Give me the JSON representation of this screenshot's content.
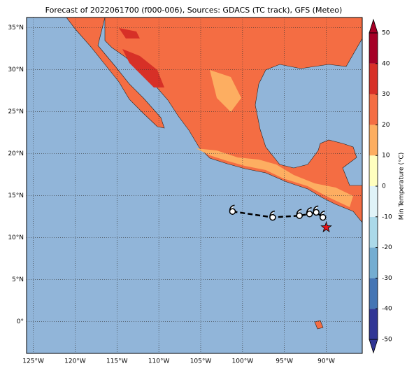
{
  "map": {
    "title": "Forecast of 2022061700 (f000-006), Sources: GDACS (TC track), GFS (Meteo)",
    "xlim": [
      -125.8,
      -85.7
    ],
    "ylim": [
      -3.8,
      36.2
    ],
    "xticks": [
      {
        "value": -125,
        "label": "125°W"
      },
      {
        "value": -120,
        "label": "120°W"
      },
      {
        "value": -115,
        "label": "115°W"
      },
      {
        "value": -110,
        "label": "110°W"
      },
      {
        "value": -105,
        "label": "105°W"
      },
      {
        "value": -100,
        "label": "100°W"
      },
      {
        "value": -95,
        "label": "95°W"
      },
      {
        "value": -90,
        "label": "90°W"
      }
    ],
    "yticks": [
      {
        "value": 0,
        "label": "0°"
      },
      {
        "value": 5,
        "label": "5°N"
      },
      {
        "value": 10,
        "label": "10°N"
      },
      {
        "value": 15,
        "label": "15°N"
      },
      {
        "value": 20,
        "label": "20°N"
      },
      {
        "value": 25,
        "label": "25°N"
      },
      {
        "value": 30,
        "label": "30°N"
      },
      {
        "value": 35,
        "label": "35°N"
      }
    ],
    "colorbar": {
      "label": "Min Temperature (°C)",
      "ticks": [
        -50,
        -40,
        -30,
        -20,
        -10,
        0,
        10,
        20,
        30,
        40,
        50
      ],
      "colors": [
        "#313695",
        "#4575b4",
        "#74add1",
        "#abd9e9",
        "#e0f3f8",
        "#ffffbf",
        "#fdae61",
        "#f46d43",
        "#d73027",
        "#a50026"
      ]
    },
    "track": {
      "lon": [
        -101.2,
        -96.4,
        -93.2,
        -92.0,
        -91.2,
        -90.4
      ],
      "lat": [
        13.1,
        12.4,
        12.6,
        12.8,
        13.0,
        12.4
      ]
    },
    "current": {
      "lon": -90.0,
      "lat": 11.2
    }
  }
}
